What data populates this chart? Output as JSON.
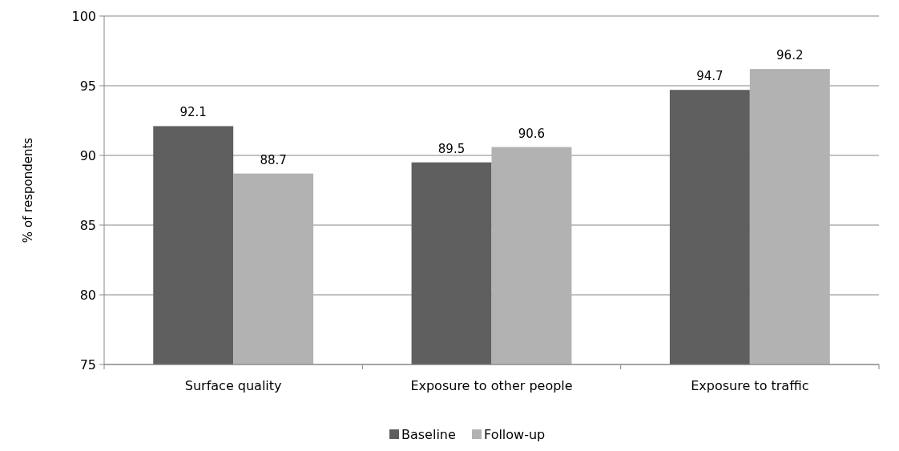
{
  "chart_data": {
    "type": "bar",
    "ylabel": "% of respondents",
    "categories": [
      "Surface quality",
      "Exposure to other people",
      "Exposure to traffic"
    ],
    "series": [
      {
        "name": "Baseline",
        "color": "#5f5f5f",
        "values": [
          92.1,
          89.5,
          94.7
        ]
      },
      {
        "name": "Follow-up",
        "color": "#b2b2b2",
        "values": [
          88.7,
          90.6,
          96.2
        ]
      }
    ],
    "ylim": [
      75,
      100
    ],
    "yticks": [
      75,
      80,
      85,
      90,
      95,
      100
    ],
    "grid": "y",
    "legend": "bottom",
    "data_labels": true
  }
}
